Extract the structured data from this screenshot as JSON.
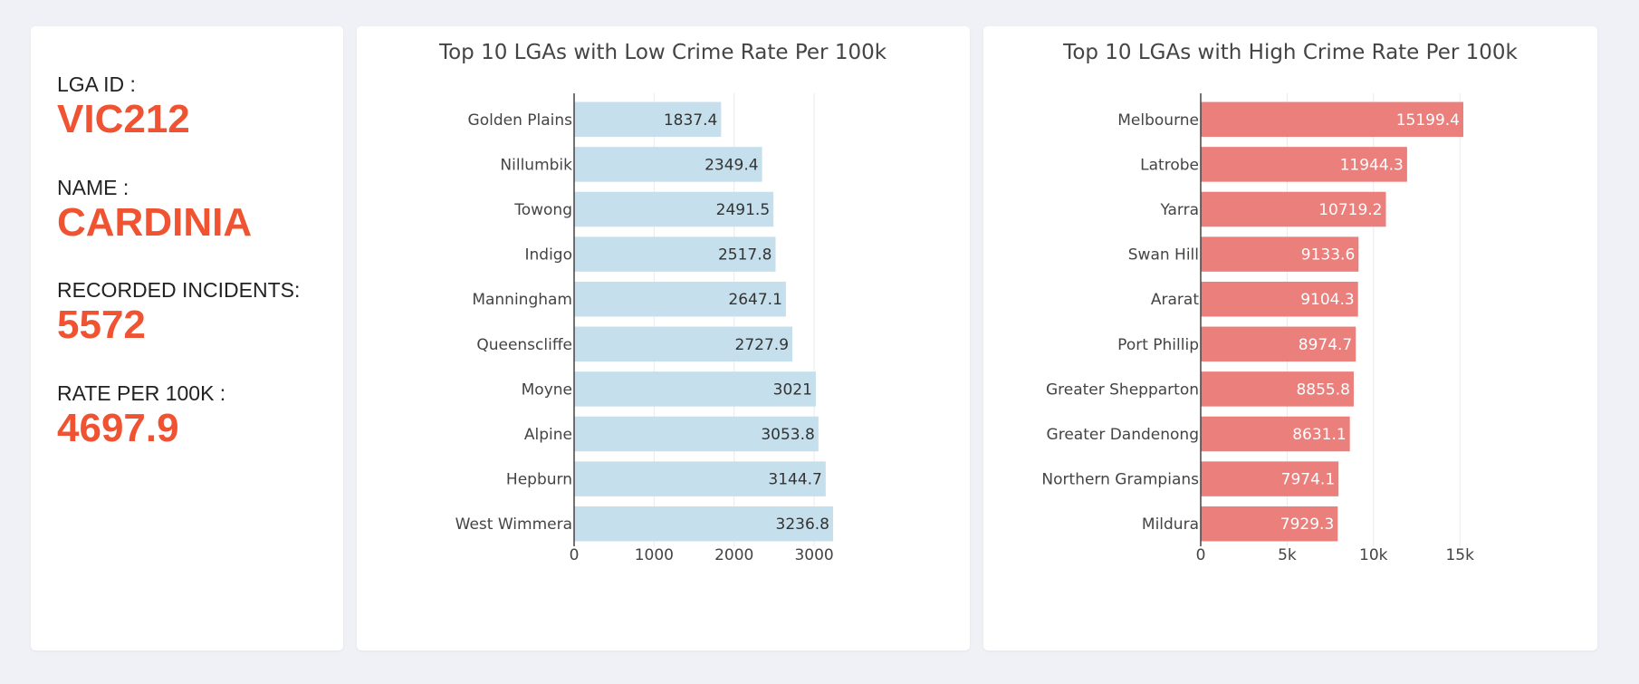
{
  "info": {
    "lga_id_label": "LGA ID :",
    "lga_id": "VIC212",
    "name_label": "NAME :",
    "name": "CARDINIA",
    "incidents_label": "RECORDED INCIDENTS:",
    "incidents": "5572",
    "rate_label": "RATE PER 100K :",
    "rate": "4697.9",
    "accent_color": "#f05331"
  },
  "chart_data": [
    {
      "type": "bar",
      "orientation": "horizontal",
      "title": "Top 10 LGAs with Low Crime Rate Per 100k",
      "categories": [
        "Golden Plains",
        "Nillumbik",
        "Towong",
        "Indigo",
        "Manningham",
        "Queenscliffe",
        "Moyne",
        "Alpine",
        "Hepburn",
        "West Wimmera"
      ],
      "values": [
        1837.4,
        2349.4,
        2491.5,
        2517.8,
        2647.1,
        2727.9,
        3021,
        3053.8,
        3144.7,
        3236.8
      ],
      "value_labels": [
        "1837.4",
        "2349.4",
        "2491.5",
        "2517.8",
        "2647.1",
        "2727.9",
        "3021",
        "3053.8",
        "3144.7",
        "3236.8"
      ],
      "xlim": [
        0,
        3236.8
      ],
      "xticks": [
        0,
        1000,
        2000,
        3000
      ],
      "xtick_labels": [
        "0",
        "1000",
        "2000",
        "3000"
      ],
      "bar_color": "#c5dfec",
      "label_color": "#333333",
      "grid": true
    },
    {
      "type": "bar",
      "orientation": "horizontal",
      "title": "Top 10 LGAs with High Crime Rate Per 100k",
      "categories": [
        "Melbourne",
        "Latrobe",
        "Yarra",
        "Swan Hill",
        "Ararat",
        "Port Phillip",
        "Greater Shepparton",
        "Greater Dandenong",
        "Northern Grampians",
        "Mildura"
      ],
      "values": [
        15199.4,
        11944.3,
        10719.2,
        9133.6,
        9104.3,
        8974.7,
        8855.8,
        8631.1,
        7974.1,
        7929.3
      ],
      "value_labels": [
        "15199.4",
        "11944.3",
        "10719.2",
        "9133.6",
        "9104.3",
        "8974.7",
        "8855.8",
        "8631.1",
        "7974.1",
        "7929.3"
      ],
      "xlim": [
        0,
        15199.4
      ],
      "xticks": [
        0,
        5000,
        10000,
        15000
      ],
      "xtick_labels": [
        "0",
        "5k",
        "10k",
        "15k"
      ],
      "bar_color": "#ea7f7b",
      "label_color": "#ffffff",
      "grid": true
    }
  ]
}
